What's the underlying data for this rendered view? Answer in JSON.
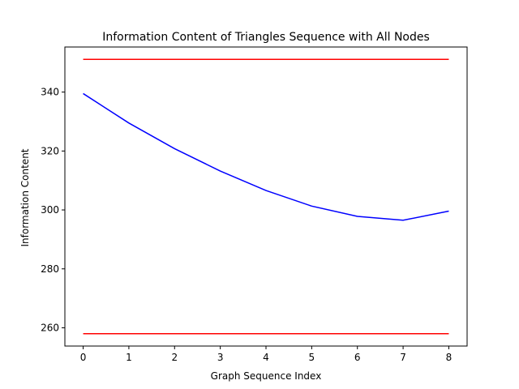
{
  "chart_data": {
    "type": "line",
    "title": "Information Content of Triangles Sequence with All Nodes",
    "xlabel": "Graph Sequence Index",
    "ylabel": "Information Content",
    "xlim": [
      -0.4,
      8.4
    ],
    "ylim": [
      253.8,
      355.3
    ],
    "xticks": [
      0,
      1,
      2,
      3,
      4,
      5,
      6,
      7,
      8
    ],
    "yticks": [
      260,
      280,
      300,
      320,
      340
    ],
    "grid": false,
    "series": [
      {
        "color": "#0000ff",
        "x": [
          0,
          1,
          2,
          3,
          4,
          5,
          6,
          7,
          8
        ],
        "values": [
          339.5,
          329.5,
          320.8,
          313.2,
          306.6,
          301.3,
          297.8,
          296.5,
          299.6
        ]
      },
      {
        "color": "#ff0000",
        "x": [
          0,
          8
        ],
        "values": [
          351.1,
          351.1
        ]
      },
      {
        "color": "#ff0000",
        "x": [
          0,
          8
        ],
        "values": [
          258.0,
          258.0
        ]
      }
    ]
  }
}
